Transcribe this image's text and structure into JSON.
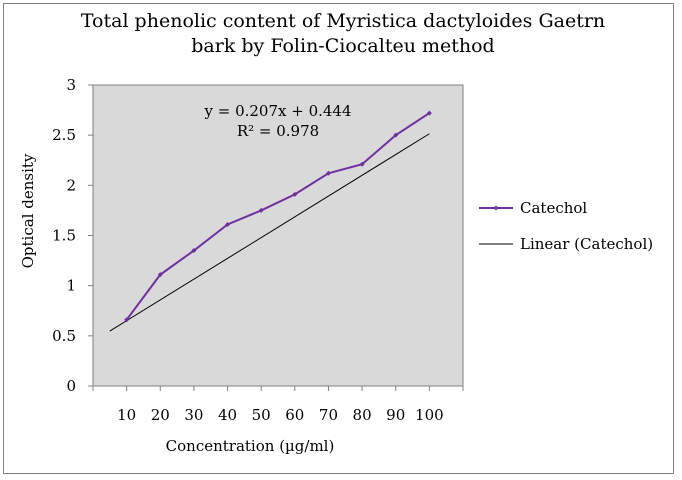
{
  "chart_data": {
    "type": "line",
    "title_line1": "Total phenolic content of Myristica dactyloides Gaetrn",
    "title_line2": "bark by Folin-Ciocalteu method",
    "xlabel": "Concentration (µg/ml)",
    "ylabel": "Optical density",
    "categories": [
      "10",
      "20",
      "30",
      "40",
      "50",
      "60",
      "70",
      "80",
      "90",
      "100"
    ],
    "series": [
      {
        "name": "Catechol",
        "color": "#7030A0",
        "values": [
          0.66,
          1.11,
          1.35,
          1.61,
          1.75,
          1.91,
          2.12,
          2.21,
          2.5,
          2.72
        ]
      }
    ],
    "trendline": {
      "name": "Linear (Catechol)",
      "slope": 0.207,
      "intercept": 0.444,
      "color": "#000000",
      "equation": "y = 0.207x + 0.444",
      "r_squared": "R² = 0.978"
    },
    "ylim": [
      0,
      3
    ],
    "yticks": [
      "0",
      "0.5",
      "1",
      "1.5",
      "2",
      "2.5",
      "3"
    ],
    "plot_background": "#d9d9d9",
    "grid": false,
    "legend_position": "right"
  }
}
